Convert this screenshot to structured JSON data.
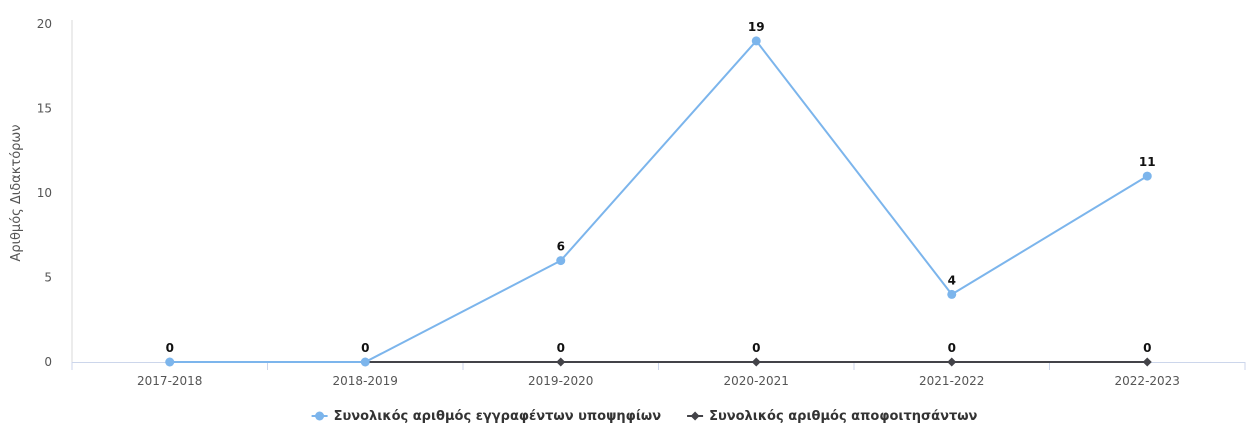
{
  "chart_data": {
    "type": "line",
    "title": "",
    "xlabel": "",
    "ylabel": "Αριθμός Διδακτόρων",
    "categories": [
      "2017-2018",
      "2018-2019",
      "2019-2020",
      "2020-2021",
      "2021-2022",
      "2022-2023"
    ],
    "ylim": [
      0,
      20
    ],
    "yticks": [
      0,
      5,
      10,
      15,
      20
    ],
    "grid": false,
    "legend": "bottom-center",
    "series": [
      {
        "name": "Συνολικός αριθμός εγγραφέντων υποψηφίων",
        "values": [
          0,
          0,
          6,
          19,
          4,
          11
        ],
        "color": "#7cb5ec",
        "marker": "circle"
      },
      {
        "name": "Συνολικός αριθμός αποφοιτησάντων",
        "values": [
          0,
          0,
          0,
          0,
          0,
          0
        ],
        "color": "#434348",
        "marker": "diamond"
      }
    ]
  }
}
